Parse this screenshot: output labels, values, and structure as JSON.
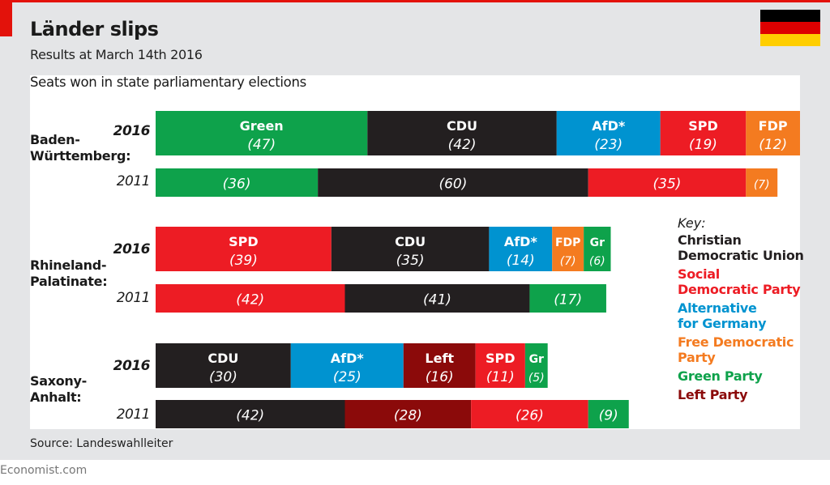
{
  "header": {
    "title": "Länder slips",
    "subtitle": "Results at March 14th 2016",
    "flag_colors": [
      "#000000",
      "#dd0000",
      "#ffce00"
    ]
  },
  "footer": {
    "source": "Source: Landeswahlleiter",
    "brand": "Economist.com"
  },
  "colors": {
    "CDU": "#231f20",
    "SPD": "#ed1c24",
    "AfD": "#0093d0",
    "FDP": "#f47b20",
    "Green": "#0ea24b",
    "Left": "#8b0a0a"
  },
  "chart_data": {
    "type": "bar",
    "orientation": "horizontal-stacked",
    "title": "Seats won in state parliamentary elections",
    "states": [
      {
        "name_line1": "Baden-",
        "name_line2": "Württemberg:",
        "rows": [
          {
            "year": "2016",
            "segments": [
              {
                "party": "Green",
                "label": "Green",
                "value": 47
              },
              {
                "party": "CDU",
                "label": "CDU",
                "value": 42
              },
              {
                "party": "AfD",
                "label": "AfD*",
                "value": 23
              },
              {
                "party": "SPD",
                "label": "SPD",
                "value": 19
              },
              {
                "party": "FDP",
                "label": "FDP",
                "value": 12
              }
            ]
          },
          {
            "year": "2011",
            "segments": [
              {
                "party": "Green",
                "label": "",
                "value": 36
              },
              {
                "party": "CDU",
                "label": "",
                "value": 60
              },
              {
                "party": "SPD",
                "label": "",
                "value": 35
              },
              {
                "party": "FDP",
                "label": "",
                "value": 7
              }
            ]
          }
        ]
      },
      {
        "name_line1": "Rhineland-",
        "name_line2": "Palatinate:",
        "rows": [
          {
            "year": "2016",
            "segments": [
              {
                "party": "SPD",
                "label": "SPD",
                "value": 39
              },
              {
                "party": "CDU",
                "label": "CDU",
                "value": 35
              },
              {
                "party": "AfD",
                "label": "AfD*",
                "value": 14
              },
              {
                "party": "FDP",
                "label": "FDP",
                "value": 7
              },
              {
                "party": "Green",
                "label": "Gr",
                "value": 6
              }
            ]
          },
          {
            "year": "2011",
            "segments": [
              {
                "party": "SPD",
                "label": "",
                "value": 42
              },
              {
                "party": "CDU",
                "label": "",
                "value": 41
              },
              {
                "party": "Green",
                "label": "",
                "value": 17
              }
            ]
          }
        ]
      },
      {
        "name_line1": "Saxony-",
        "name_line2": "Anhalt:",
        "rows": [
          {
            "year": "2016",
            "segments": [
              {
                "party": "CDU",
                "label": "CDU",
                "value": 30
              },
              {
                "party": "AfD",
                "label": "AfD*",
                "value": 25
              },
              {
                "party": "Left",
                "label": "Left",
                "value": 16
              },
              {
                "party": "SPD",
                "label": "SPD",
                "value": 11
              },
              {
                "party": "Green",
                "label": "Gr",
                "value": 5
              }
            ]
          },
          {
            "year": "2011",
            "segments": [
              {
                "party": "CDU",
                "label": "",
                "value": 42
              },
              {
                "party": "Left",
                "label": "",
                "value": 28
              },
              {
                "party": "SPD",
                "label": "",
                "value": 26
              },
              {
                "party": "Green",
                "label": "",
                "value": 9
              }
            ]
          }
        ]
      }
    ],
    "key": {
      "label": "Key:",
      "entries": [
        {
          "party": "CDU",
          "line1": "Christian",
          "line2": "Democratic Union"
        },
        {
          "party": "SPD",
          "line1": "Social",
          "line2": "Democratic Party"
        },
        {
          "party": "AfD",
          "line1": "Alternative",
          "line2": "for Germany"
        },
        {
          "party": "FDP",
          "line1": "Free Democratic",
          "line2": "Party"
        },
        {
          "party": "Green",
          "line1": "Green Party",
          "line2": ""
        },
        {
          "party": "Left",
          "line1": "Left Party",
          "line2": ""
        }
      ]
    }
  }
}
